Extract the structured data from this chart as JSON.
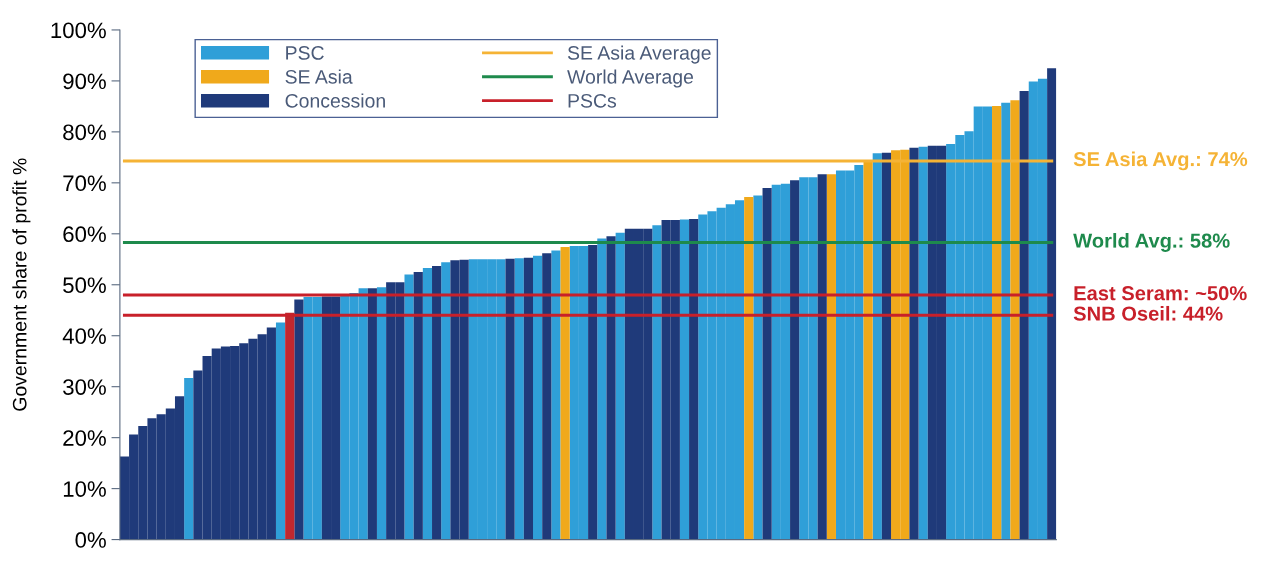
{
  "chart_data": {
    "type": "bar",
    "ylabel": "Government share of profit %",
    "categories": [
      null,
      null,
      null,
      null,
      null,
      null,
      null,
      null,
      null,
      null,
      null,
      null,
      null,
      null,
      null,
      null,
      null,
      null,
      null,
      null,
      null,
      null,
      null,
      null,
      null,
      null,
      null,
      null,
      null,
      null,
      null,
      null,
      null,
      null,
      null,
      null,
      null,
      null,
      null,
      null,
      null,
      null,
      null,
      null,
      null,
      null,
      null,
      null,
      null,
      null,
      null,
      null,
      null,
      null,
      null,
      null,
      null,
      null,
      null,
      null,
      null,
      null,
      null,
      null,
      null,
      null,
      null,
      null,
      null,
      null,
      null,
      null,
      null,
      null,
      null,
      null,
      null,
      null,
      null,
      null,
      null,
      null,
      null,
      null,
      null,
      null,
      null,
      null,
      null,
      null,
      null,
      null,
      null,
      null,
      null,
      null,
      null,
      null,
      null,
      null,
      null,
      null
    ],
    "series": [
      {
        "name": "PSC",
        "color": "#2f9fd8",
        "values": [
          null,
          null,
          null,
          null,
          null,
          null,
          null,
          31.7,
          null,
          null,
          null,
          null,
          null,
          null,
          null,
          null,
          null,
          42.6,
          null,
          null,
          47.6,
          47.6,
          null,
          null,
          48.2,
          48.4,
          49.3,
          null,
          49.5,
          null,
          null,
          52,
          null,
          53.3,
          null,
          54.4,
          null,
          null,
          55,
          55,
          55,
          55,
          null,
          55.2,
          null,
          55.7,
          null,
          56.7,
          null,
          57.6,
          57.6,
          null,
          59.1,
          null,
          60.2,
          null,
          null,
          null,
          61.7,
          null,
          null,
          62.8,
          null,
          63.8,
          64.4,
          65.1,
          65.8,
          66.6,
          null,
          67.5,
          null,
          69.6,
          69.8,
          null,
          71.1,
          71.1,
          null,
          null,
          72.4,
          72.4,
          73.5,
          null,
          75.8,
          null,
          null,
          null,
          null,
          77.1,
          null,
          null,
          77.6,
          79.4,
          80.1,
          85,
          85,
          null,
          85.7,
          null,
          null,
          89.9,
          90.4,
          null
        ]
      },
      {
        "name": "SE Asia",
        "color": "#f0a91b",
        "values": [
          null,
          null,
          null,
          null,
          null,
          null,
          null,
          null,
          null,
          null,
          null,
          null,
          null,
          null,
          null,
          null,
          null,
          null,
          null,
          null,
          null,
          null,
          null,
          null,
          null,
          null,
          null,
          null,
          null,
          null,
          null,
          null,
          null,
          null,
          null,
          null,
          null,
          null,
          null,
          null,
          null,
          null,
          null,
          null,
          null,
          null,
          null,
          null,
          57.4,
          null,
          null,
          null,
          null,
          null,
          null,
          null,
          null,
          null,
          null,
          null,
          null,
          null,
          null,
          null,
          null,
          null,
          null,
          null,
          67.2,
          null,
          null,
          null,
          null,
          null,
          null,
          null,
          null,
          71.7,
          null,
          null,
          null,
          74.3,
          null,
          null,
          76.4,
          76.5,
          null,
          null,
          null,
          null,
          null,
          null,
          null,
          null,
          null,
          85.1,
          null,
          86.2,
          null,
          null,
          null,
          null
        ]
      },
      {
        "name": "Concession",
        "color": "#1f3a7a",
        "values": [
          16.3,
          20.6,
          22.3,
          23.8,
          24.6,
          25.7,
          28.1,
          null,
          33.2,
          36,
          37.5,
          37.9,
          38,
          38.5,
          39.4,
          40.3,
          41.6,
          null,
          null,
          47.1,
          null,
          null,
          47.7,
          47.7,
          null,
          null,
          null,
          49.3,
          null,
          50.5,
          50.5,
          null,
          52.5,
          null,
          53.7,
          null,
          54.8,
          54.9,
          null,
          null,
          null,
          null,
          55.1,
          null,
          55.3,
          null,
          56.2,
          null,
          null,
          null,
          null,
          57.8,
          null,
          59.5,
          null,
          61,
          61,
          61,
          null,
          62.7,
          62.7,
          null,
          62.9,
          null,
          null,
          null,
          null,
          null,
          null,
          null,
          69,
          null,
          null,
          70.5,
          null,
          null,
          71.7,
          null,
          null,
          null,
          null,
          null,
          null,
          75.9,
          null,
          null,
          76.9,
          null,
          77.3,
          77.3,
          null,
          null,
          null,
          null,
          null,
          null,
          null,
          null,
          88,
          null,
          null,
          92.5
        ]
      },
      {
        "color": "#c0282e",
        "values": [
          null,
          null,
          null,
          null,
          null,
          null,
          null,
          null,
          null,
          null,
          null,
          null,
          null,
          null,
          null,
          null,
          null,
          null,
          44.5,
          null,
          null,
          null,
          null,
          null,
          null,
          null,
          null,
          null,
          null,
          null,
          null,
          null,
          null,
          null,
          null,
          null,
          null,
          null,
          null,
          null,
          null,
          null,
          null,
          null,
          null,
          null,
          null,
          null,
          null,
          null,
          null,
          null,
          null,
          null,
          null,
          null,
          null,
          null,
          null,
          null,
          null,
          null,
          null,
          null,
          null,
          null,
          null,
          null,
          null,
          null,
          null,
          null,
          null,
          null,
          null,
          null,
          null,
          null,
          null,
          null,
          null,
          null,
          null,
          null,
          null,
          null,
          null,
          null,
          null,
          null,
          null,
          null,
          null,
          null,
          null,
          null,
          null,
          null,
          null,
          null,
          null,
          null
        ]
      },
      {
        "type": "line",
        "name": "SE Asia Average",
        "color": "#f5b335",
        "values": [
          74.3,
          74.3,
          74.3,
          74.3,
          74.3,
          74.3,
          74.3,
          74.3,
          74.3,
          74.3,
          74.3,
          74.3,
          74.3,
          74.3,
          74.3,
          74.3,
          74.3,
          74.3,
          74.3,
          74.3,
          74.3,
          74.3,
          74.3,
          74.3,
          74.3,
          74.3,
          74.3,
          74.3,
          74.3,
          74.3,
          74.3,
          74.3,
          74.3,
          74.3,
          74.3,
          74.3,
          74.3,
          74.3,
          74.3,
          74.3,
          74.3,
          74.3,
          74.3,
          74.3,
          74.3,
          74.3,
          74.3,
          74.3,
          74.3,
          74.3,
          74.3,
          74.3,
          74.3,
          74.3,
          74.3,
          74.3,
          74.3,
          74.3,
          74.3,
          74.3,
          74.3,
          74.3,
          74.3,
          74.3,
          74.3,
          74.3,
          74.3,
          74.3,
          74.3,
          74.3,
          74.3,
          74.3,
          74.3,
          74.3,
          74.3,
          74.3,
          74.3,
          74.3,
          74.3,
          74.3,
          74.3,
          74.3,
          74.3,
          74.3,
          74.3,
          74.3,
          74.3,
          74.3,
          74.3,
          74.3,
          74.3,
          74.3,
          74.3,
          74.3,
          74.3,
          74.3,
          74.3,
          74.3,
          74.3,
          74.3,
          74.3,
          74.3
        ]
      },
      {
        "type": "line",
        "name": "World Average",
        "color": "#1e8a4c",
        "values": [
          58.3,
          58.3,
          58.3,
          58.3,
          58.3,
          58.3,
          58.3,
          58.3,
          58.3,
          58.3,
          58.3,
          58.3,
          58.3,
          58.3,
          58.3,
          58.3,
          58.3,
          58.3,
          58.3,
          58.3,
          58.3,
          58.3,
          58.3,
          58.3,
          58.3,
          58.3,
          58.3,
          58.3,
          58.3,
          58.3,
          58.3,
          58.3,
          58.3,
          58.3,
          58.3,
          58.3,
          58.3,
          58.3,
          58.3,
          58.3,
          58.3,
          58.3,
          58.3,
          58.3,
          58.3,
          58.3,
          58.3,
          58.3,
          58.3,
          58.3,
          58.3,
          58.3,
          58.3,
          58.3,
          58.3,
          58.3,
          58.3,
          58.3,
          58.3,
          58.3,
          58.3,
          58.3,
          58.3,
          58.3,
          58.3,
          58.3,
          58.3,
          58.3,
          58.3,
          58.3,
          58.3,
          58.3,
          58.3,
          58.3,
          58.3,
          58.3,
          58.3,
          58.3,
          58.3,
          58.3,
          58.3,
          58.3,
          58.3,
          58.3,
          58.3,
          58.3,
          58.3,
          58.3,
          58.3,
          58.3,
          58.3,
          58.3,
          58.3,
          58.3,
          58.3,
          58.3,
          58.3,
          58.3,
          58.3,
          58.3,
          58.3,
          58.3
        ]
      },
      {
        "type": "line",
        "name": "PSCs",
        "color": "#c8202a",
        "values": [
          48,
          48,
          48,
          48,
          48,
          48,
          48,
          48,
          48,
          48,
          48,
          48,
          48,
          48,
          48,
          48,
          48,
          48,
          48,
          48,
          48,
          48,
          48,
          48,
          48,
          48,
          48,
          48,
          48,
          48,
          48,
          48,
          48,
          48,
          48,
          48,
          48,
          48,
          48,
          48,
          48,
          48,
          48,
          48,
          48,
          48,
          48,
          48,
          48,
          48,
          48,
          48,
          48,
          48,
          48,
          48,
          48,
          48,
          48,
          48,
          48,
          48,
          48,
          48,
          48,
          48,
          48,
          48,
          48,
          48,
          48,
          48,
          48,
          48,
          48,
          48,
          48,
          48,
          48,
          48,
          48,
          48,
          48,
          48,
          48,
          48,
          48,
          48,
          48,
          48,
          48,
          48,
          48,
          48,
          48,
          48,
          48,
          48,
          48,
          48,
          48,
          48
        ]
      },
      {
        "type": "line",
        "color": "#c8202a",
        "values": [
          44,
          44,
          44,
          44,
          44,
          44,
          44,
          44,
          44,
          44,
          44,
          44,
          44,
          44,
          44,
          44,
          44,
          44,
          44,
          44,
          44,
          44,
          44,
          44,
          44,
          44,
          44,
          44,
          44,
          44,
          44,
          44,
          44,
          44,
          44,
          44,
          44,
          44,
          44,
          44,
          44,
          44,
          44,
          44,
          44,
          44,
          44,
          44,
          44,
          44,
          44,
          44,
          44,
          44,
          44,
          44,
          44,
          44,
          44,
          44,
          44,
          44,
          44,
          44,
          44,
          44,
          44,
          44,
          44,
          44,
          44,
          44,
          44,
          44,
          44,
          44,
          44,
          44,
          44,
          44,
          44,
          44,
          44,
          44,
          44,
          44,
          44,
          44,
          44,
          44,
          44,
          44,
          44,
          44,
          44,
          44,
          44,
          44,
          44,
          44,
          44,
          44
        ]
      }
    ],
    "ylim": [
      0,
      100
    ],
    "yticks": [
      {
        "value": 0,
        "label": "0%"
      },
      {
        "value": 10,
        "label": "10%"
      },
      {
        "value": 20,
        "label": "20%"
      },
      {
        "value": 30,
        "label": "30%"
      },
      {
        "value": 40,
        "label": "40%"
      },
      {
        "value": 50,
        "label": "50%"
      },
      {
        "value": 60,
        "label": "60%"
      },
      {
        "value": 70,
        "label": "70%"
      },
      {
        "value": 80,
        "label": "80%"
      },
      {
        "value": 90,
        "label": "90%"
      },
      {
        "value": 100,
        "label": "100%"
      }
    ],
    "annotations": [
      "SE Asia Avg.: 74%",
      "World Avg.: 58%",
      "East Seram: ~50%",
      "SNB Oseil: 44%"
    ],
    "tick_labels": "y",
    "grid": false,
    "legend": "top left"
  }
}
